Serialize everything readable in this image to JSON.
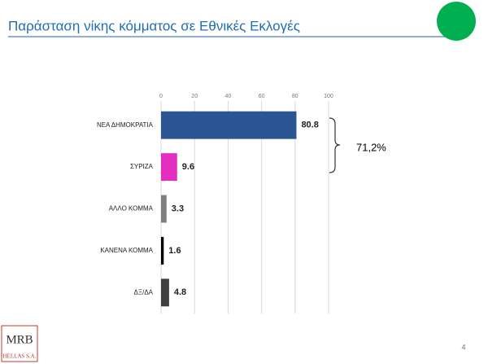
{
  "chart_data": {
    "type": "hbar",
    "title": "Παράσταση νίκης κόμματος σε Εθνικές Εκλογές",
    "categories": [
      "ΝΕΑ ΔΗΜΟΚΡΑΤΙΑ",
      "ΣΥΡΙΖΑ",
      "ΑΛΛΟ ΚΟΜΜΑ",
      "ΚΑΝΕΝΑ ΚΟΜΜΑ",
      "ΔΞ/ΔΑ"
    ],
    "values": [
      80.8,
      9.6,
      3.3,
      1.6,
      4.8
    ],
    "colors": [
      "#2c5593",
      "#e22fc0",
      "#7f7f7f",
      "#000000",
      "#3f3f3f"
    ],
    "xlim": [
      0,
      100
    ],
    "xticks": [
      0,
      20,
      40,
      60,
      80,
      100
    ],
    "grid": true,
    "annotation": "71,2%"
  },
  "footer": {
    "logo": "MRB",
    "logo_sub": "HELLAS S.A.",
    "page_number": "4"
  }
}
